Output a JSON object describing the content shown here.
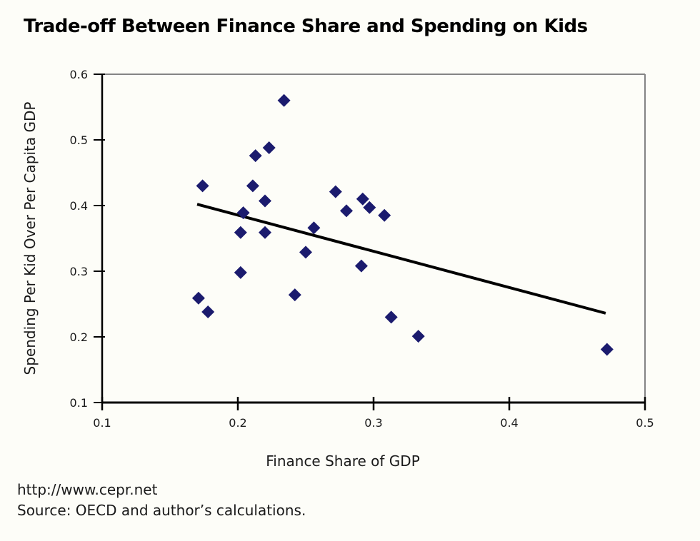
{
  "page": {
    "footer_url": "http://www.cepr.net",
    "footer_source": "Source: OECD and author’s calculations."
  },
  "colors": {
    "background": "#fdfdf8",
    "axis": "#000000",
    "plot_border": "#848484",
    "marker": "#1b1b6e",
    "trend_line": "#000000",
    "text": "#1a1a1a"
  },
  "chart_data": {
    "type": "scatter",
    "title": "Trade-off Between Finance Share and Spending on Kids",
    "xlabel": "Finance Share of GDP",
    "ylabel": "Spending Per Kid Over Per Capita GDP",
    "xlim": [
      0.1,
      0.5
    ],
    "ylim": [
      0.1,
      0.6
    ],
    "x_ticks": [
      0.1,
      0.2,
      0.3,
      0.4,
      0.5
    ],
    "y_ticks": [
      0.1,
      0.2,
      0.3,
      0.4,
      0.5,
      0.6
    ],
    "grid": false,
    "legend": null,
    "marker": "diamond",
    "marker_color": "#1b1b6e",
    "points": [
      {
        "x": 0.174,
        "y": 0.43
      },
      {
        "x": 0.171,
        "y": 0.259
      },
      {
        "x": 0.178,
        "y": 0.238
      },
      {
        "x": 0.202,
        "y": 0.298
      },
      {
        "x": 0.204,
        "y": 0.389
      },
      {
        "x": 0.202,
        "y": 0.359
      },
      {
        "x": 0.211,
        "y": 0.43
      },
      {
        "x": 0.213,
        "y": 0.476
      },
      {
        "x": 0.22,
        "y": 0.407
      },
      {
        "x": 0.22,
        "y": 0.359
      },
      {
        "x": 0.223,
        "y": 0.488
      },
      {
        "x": 0.234,
        "y": 0.56
      },
      {
        "x": 0.242,
        "y": 0.264
      },
      {
        "x": 0.25,
        "y": 0.329
      },
      {
        "x": 0.256,
        "y": 0.366
      },
      {
        "x": 0.272,
        "y": 0.421
      },
      {
        "x": 0.28,
        "y": 0.392
      },
      {
        "x": 0.292,
        "y": 0.41
      },
      {
        "x": 0.297,
        "y": 0.397
      },
      {
        "x": 0.308,
        "y": 0.385
      },
      {
        "x": 0.291,
        "y": 0.308
      },
      {
        "x": 0.313,
        "y": 0.23
      },
      {
        "x": 0.333,
        "y": 0.201
      },
      {
        "x": 0.472,
        "y": 0.181
      }
    ],
    "trend_line": {
      "x1": 0.17,
      "y1": 0.402,
      "x2": 0.471,
      "y2": 0.236,
      "color": "#000000",
      "width": 4
    }
  }
}
